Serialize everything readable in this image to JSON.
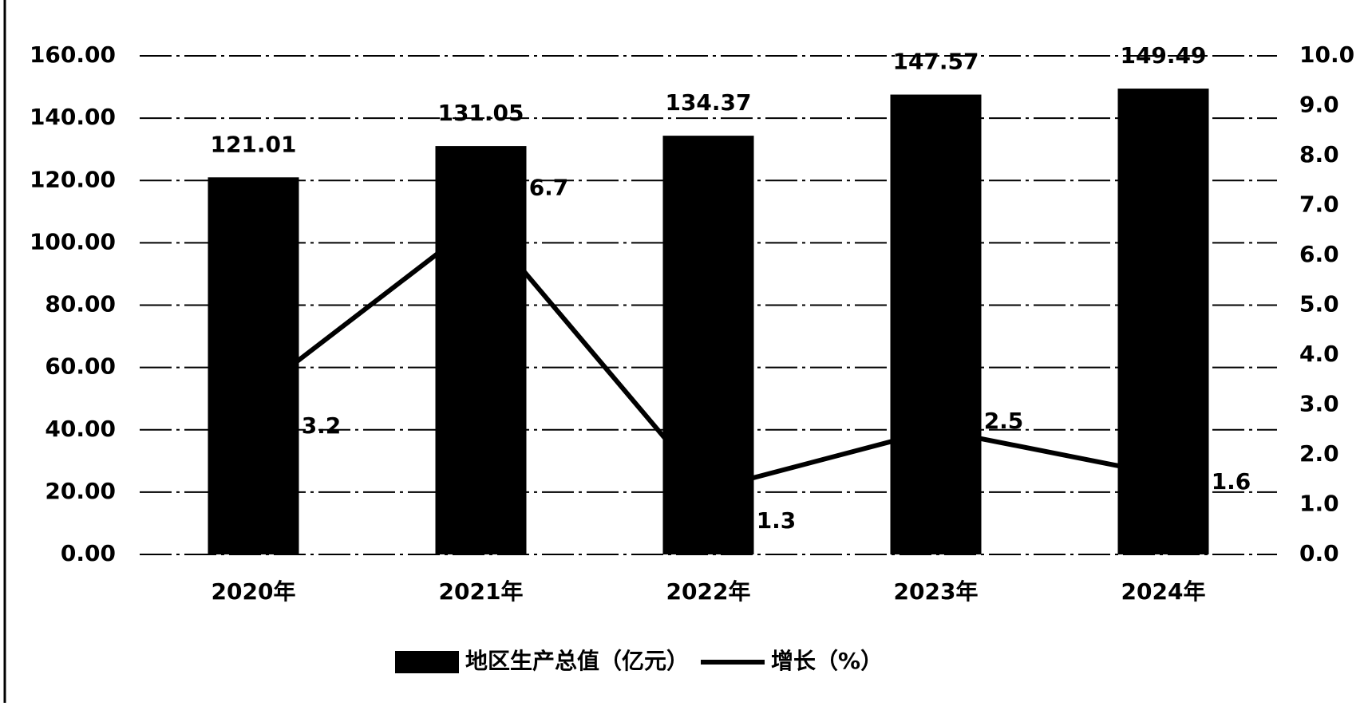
{
  "chart_data": {
    "type": "combo",
    "categories": [
      "2020年",
      "2021年",
      "2022年",
      "2023年",
      "2024年"
    ],
    "series": [
      {
        "name": "地区生产总值（亿元）",
        "type": "bar",
        "color": "#000000",
        "values": [
          121.01,
          131.05,
          134.37,
          147.57,
          149.49
        ]
      },
      {
        "name": "增长（%）",
        "type": "line",
        "axis": "y2",
        "color": "#000000",
        "values": [
          3.2,
          6.7,
          1.3,
          2.5,
          1.6
        ]
      }
    ],
    "ylim": [
      0,
      160
    ],
    "yticks": [
      {
        "value": 0,
        "label": "0.00"
      },
      {
        "value": 20,
        "label": "20.00"
      },
      {
        "value": 40,
        "label": "40.00"
      },
      {
        "value": 60,
        "label": "60.00"
      },
      {
        "value": 80,
        "label": "80.00"
      },
      {
        "value": 100,
        "label": "100.00"
      },
      {
        "value": 120,
        "label": "120.00"
      },
      {
        "value": 140,
        "label": "140.00"
      },
      {
        "value": 160,
        "label": "160.00"
      }
    ],
    "y2lim": [
      0,
      10
    ],
    "y2ticks": [
      {
        "value": 0,
        "label": "0.0"
      },
      {
        "value": 1,
        "label": "1.0"
      },
      {
        "value": 2,
        "label": "2.0"
      },
      {
        "value": 3,
        "label": "3.0"
      },
      {
        "value": 4,
        "label": "4.0"
      },
      {
        "value": 5,
        "label": "5.0"
      },
      {
        "value": 6,
        "label": "6.0"
      },
      {
        "value": 7,
        "label": "7.0"
      },
      {
        "value": 8,
        "label": "8.0"
      },
      {
        "value": 9,
        "label": "9.0"
      },
      {
        "value": 10,
        "label": "10.0"
      }
    ],
    "grid": true,
    "legend": "bottom"
  }
}
